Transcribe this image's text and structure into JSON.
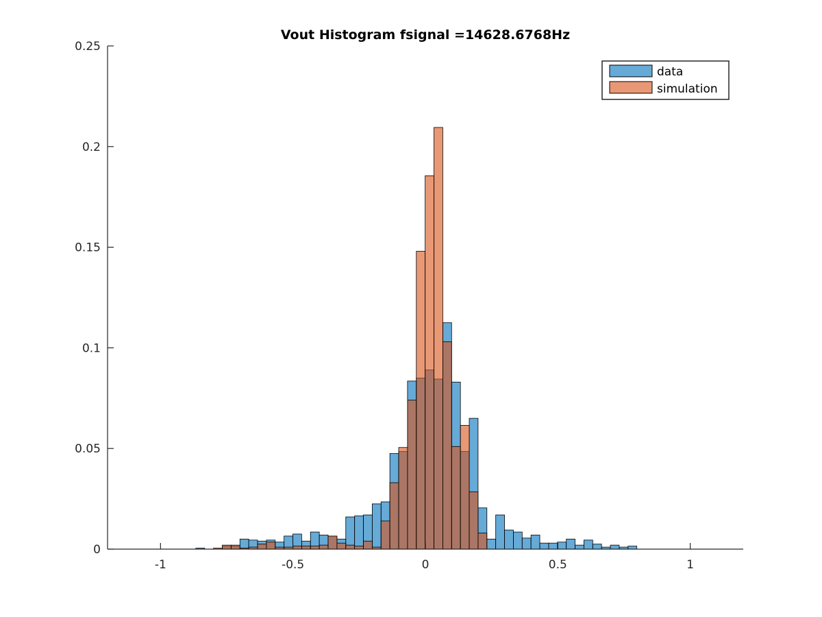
{
  "chart_data": {
    "type": "bar",
    "title": "Vout Histogram fsignal =14628.6768Hz",
    "xlabel": "",
    "ylabel": "",
    "xlim": [
      -1.2,
      1.2
    ],
    "ylim": [
      0,
      0.25
    ],
    "grid": false,
    "legend_position": "top-right",
    "bin_width": 0.0333,
    "bin_start": -0.8667,
    "x_ticks": [
      {
        "value": -1,
        "label": "-1"
      },
      {
        "value": -0.5,
        "label": "-0.5"
      },
      {
        "value": 0,
        "label": "0"
      },
      {
        "value": 0.5,
        "label": "0.5"
      },
      {
        "value": 1,
        "label": "1"
      }
    ],
    "y_ticks": [
      {
        "value": 0,
        "label": "0"
      },
      {
        "value": 0.05,
        "label": "0.05"
      },
      {
        "value": 0.1,
        "label": "0.1"
      },
      {
        "value": 0.15,
        "label": "0.15"
      },
      {
        "value": 0.2,
        "label": "0.2"
      },
      {
        "value": 0.25,
        "label": "0.25"
      }
    ],
    "series": [
      {
        "name": "data",
        "color": "#0072BD",
        "values": [
          0.0005,
          0,
          0,
          0.0015,
          0.0015,
          0.005,
          0.0045,
          0.004,
          0.0045,
          0.0035,
          0.0065,
          0.0075,
          0.004,
          0.0085,
          0.007,
          0.0065,
          0.005,
          0.016,
          0.0165,
          0.017,
          0.0225,
          0.0235,
          0.0475,
          0.0485,
          0.0835,
          0.085,
          0.089,
          0.0845,
          0.1125,
          0.083,
          0.0485,
          0.065,
          0.0205,
          0.005,
          0.017,
          0.0095,
          0.0085,
          0.0055,
          0.007,
          0.003,
          0.003,
          0.0035,
          0.005,
          0.002,
          0.0045,
          0.0025,
          0.001,
          0.002,
          0.001,
          0.0015
        ]
      },
      {
        "name": "simulation",
        "color": "#D95319",
        "values": [
          0,
          0,
          0.0005,
          0.002,
          0.002,
          0.0005,
          0.001,
          0.0025,
          0.0035,
          0.001,
          0.001,
          0.0015,
          0.0015,
          0.0015,
          0.002,
          0.0065,
          0.003,
          0.002,
          0.0015,
          0.004,
          0.001,
          0.014,
          0.033,
          0.0505,
          0.074,
          0.148,
          0.1855,
          0.2095,
          0.103,
          0.051,
          0.0615,
          0.0285,
          0.008,
          0,
          0,
          0,
          0,
          0,
          0,
          0,
          0,
          0,
          0,
          0,
          0,
          0,
          0,
          0,
          0,
          0
        ]
      }
    ]
  }
}
